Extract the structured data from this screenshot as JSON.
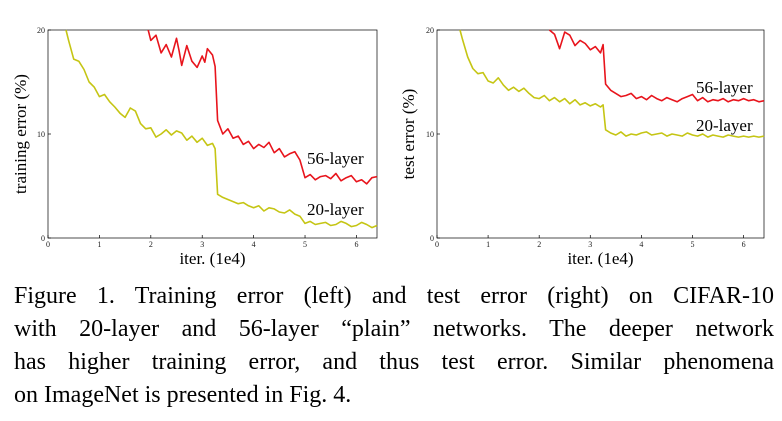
{
  "chart_data": [
    {
      "type": "line",
      "title": "",
      "xlabel": "iter. (1e4)",
      "ylabel": "training error (%)",
      "xlim": [
        0,
        6.4
      ],
      "ylim": [
        0,
        20
      ],
      "xticks": [
        0,
        1,
        2,
        3,
        4,
        5,
        6
      ],
      "yticks": [
        0,
        10,
        20
      ],
      "series": [
        {
          "name": "56-layer",
          "color": "#e8141c",
          "x": [
            1.95,
            2.0,
            2.1,
            2.2,
            2.3,
            2.4,
            2.5,
            2.55,
            2.6,
            2.7,
            2.8,
            2.9,
            3.0,
            3.05,
            3.1,
            3.2,
            3.25,
            3.3,
            3.4,
            3.5,
            3.6,
            3.7,
            3.8,
            3.9,
            4.0,
            4.1,
            4.2,
            4.3,
            4.4,
            4.5,
            4.6,
            4.7,
            4.8,
            4.9,
            5.0,
            5.1,
            5.2,
            5.3,
            5.4,
            5.5,
            5.6,
            5.7,
            5.8,
            5.9,
            6.0,
            6.1,
            6.2,
            6.3,
            6.4
          ],
          "y": [
            20.0,
            19.0,
            19.5,
            17.8,
            18.6,
            17.4,
            19.2,
            18.0,
            16.6,
            18.5,
            17.0,
            16.4,
            17.5,
            16.9,
            18.2,
            17.6,
            16.5,
            11.3,
            10.0,
            10.5,
            9.6,
            9.8,
            9.0,
            9.3,
            8.6,
            9.0,
            8.7,
            9.2,
            8.2,
            8.6,
            7.8,
            8.1,
            8.3,
            7.5,
            5.8,
            6.1,
            5.6,
            5.9,
            6.0,
            5.7,
            6.2,
            5.5,
            5.8,
            6.0,
            5.4,
            5.6,
            5.2,
            5.8,
            5.9
          ]
        },
        {
          "name": "20-layer",
          "color": "#c5c514",
          "x": [
            0.35,
            0.4,
            0.5,
            0.6,
            0.7,
            0.8,
            0.9,
            1.0,
            1.1,
            1.2,
            1.3,
            1.4,
            1.5,
            1.6,
            1.7,
            1.8,
            1.9,
            2.0,
            2.1,
            2.2,
            2.3,
            2.4,
            2.5,
            2.6,
            2.7,
            2.8,
            2.9,
            3.0,
            3.1,
            3.2,
            3.25,
            3.3,
            3.4,
            3.5,
            3.6,
            3.7,
            3.8,
            3.9,
            4.0,
            4.1,
            4.2,
            4.3,
            4.4,
            4.5,
            4.6,
            4.7,
            4.8,
            4.9,
            5.0,
            5.1,
            5.2,
            5.3,
            5.4,
            5.5,
            5.6,
            5.7,
            5.8,
            5.9,
            6.0,
            6.1,
            6.2,
            6.3,
            6.4
          ],
          "y": [
            20.0,
            19.0,
            17.2,
            17.0,
            16.2,
            15.0,
            14.5,
            13.6,
            13.8,
            13.1,
            12.6,
            12.0,
            11.6,
            12.5,
            12.2,
            11.0,
            10.5,
            10.6,
            9.7,
            10.0,
            10.4,
            9.9,
            10.3,
            10.1,
            9.4,
            9.8,
            9.2,
            9.6,
            8.9,
            9.1,
            8.6,
            4.2,
            3.9,
            3.7,
            3.5,
            3.3,
            3.4,
            3.1,
            2.9,
            3.1,
            2.6,
            2.9,
            2.8,
            2.5,
            2.4,
            2.7,
            2.3,
            2.1,
            1.4,
            1.6,
            1.3,
            1.4,
            1.5,
            1.2,
            1.3,
            1.6,
            1.4,
            1.1,
            1.2,
            1.5,
            1.3,
            1.0,
            1.2
          ]
        }
      ]
    },
    {
      "type": "line",
      "title": "",
      "xlabel": "iter. (1e4)",
      "ylabel": "test error (%)",
      "xlim": [
        0,
        6.4
      ],
      "ylim": [
        0,
        20
      ],
      "xticks": [
        0,
        1,
        2,
        3,
        4,
        5,
        6
      ],
      "yticks": [
        0,
        10,
        20
      ],
      "series": [
        {
          "name": "56-layer",
          "color": "#e8141c",
          "x": [
            2.2,
            2.3,
            2.4,
            2.5,
            2.6,
            2.7,
            2.8,
            2.9,
            3.0,
            3.1,
            3.2,
            3.25,
            3.3,
            3.4,
            3.5,
            3.6,
            3.7,
            3.8,
            3.9,
            4.0,
            4.1,
            4.2,
            4.3,
            4.4,
            4.5,
            4.6,
            4.7,
            4.8,
            4.9,
            5.0,
            5.1,
            5.2,
            5.3,
            5.4,
            5.5,
            5.6,
            5.7,
            5.8,
            5.9,
            6.0,
            6.1,
            6.2,
            6.3,
            6.4
          ],
          "y": [
            20.0,
            19.6,
            18.2,
            19.8,
            19.5,
            18.5,
            19.0,
            18.7,
            18.1,
            18.4,
            17.8,
            18.6,
            14.8,
            14.2,
            13.9,
            13.6,
            13.7,
            13.9,
            13.4,
            13.6,
            13.3,
            13.7,
            13.4,
            13.2,
            13.5,
            13.3,
            13.1,
            13.4,
            13.6,
            13.8,
            13.2,
            13.5,
            13.1,
            13.3,
            13.2,
            13.4,
            13.1,
            13.3,
            13.2,
            13.4,
            13.2,
            13.3,
            13.1,
            13.2
          ]
        },
        {
          "name": "20-layer",
          "color": "#c5c514",
          "x": [
            0.45,
            0.5,
            0.6,
            0.7,
            0.8,
            0.9,
            1.0,
            1.1,
            1.2,
            1.3,
            1.4,
            1.5,
            1.6,
            1.7,
            1.8,
            1.9,
            2.0,
            2.1,
            2.2,
            2.3,
            2.4,
            2.5,
            2.6,
            2.7,
            2.8,
            2.9,
            3.0,
            3.1,
            3.2,
            3.25,
            3.3,
            3.4,
            3.5,
            3.6,
            3.7,
            3.8,
            3.9,
            4.0,
            4.1,
            4.2,
            4.3,
            4.4,
            4.5,
            4.6,
            4.7,
            4.8,
            4.9,
            5.0,
            5.1,
            5.2,
            5.3,
            5.4,
            5.5,
            5.6,
            5.7,
            5.8,
            5.9,
            6.0,
            6.1,
            6.2,
            6.3,
            6.4
          ],
          "y": [
            20.0,
            19.1,
            17.4,
            16.3,
            15.8,
            15.9,
            15.1,
            14.9,
            15.4,
            14.7,
            14.2,
            14.5,
            14.1,
            14.4,
            13.9,
            13.5,
            13.4,
            13.7,
            13.2,
            13.5,
            13.1,
            13.4,
            12.9,
            13.3,
            12.8,
            13.0,
            12.7,
            12.9,
            12.6,
            12.8,
            10.4,
            10.1,
            9.9,
            10.2,
            9.8,
            10.0,
            9.9,
            10.1,
            10.2,
            9.9,
            10.0,
            10.1,
            9.8,
            10.0,
            9.9,
            9.8,
            10.1,
            9.9,
            9.8,
            10.0,
            9.7,
            9.9,
            9.8,
            9.7,
            9.9,
            9.8,
            9.7,
            9.8,
            9.7,
            9.8,
            9.7,
            9.8
          ]
        }
      ]
    }
  ],
  "caption": {
    "lines": [
      "Figure 1. Training error (left) and test error (right) on CIFAR-10",
      "with 20-layer and 56-layer “plain” networks. The deeper network",
      "has higher training error, and thus test error. Similar phenomena",
      "on ImageNet is presented in Fig. 4."
    ]
  }
}
